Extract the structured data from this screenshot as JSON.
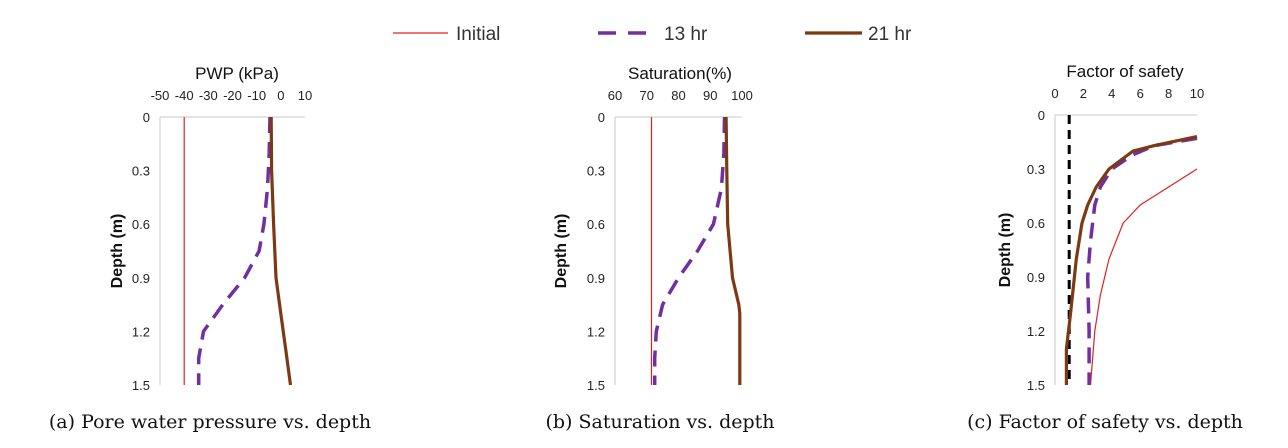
{
  "legend": [
    {
      "name": "Initial",
      "color": "#e02020",
      "style": "solid-thin"
    },
    {
      "name": "13 hr",
      "color": "#7030a0",
      "style": "dashed"
    },
    {
      "name": "21 hr",
      "color": "#7b3a14",
      "style": "solid-thick"
    }
  ],
  "chart_data": [
    {
      "type": "line",
      "title": "PWP (kPa)",
      "caption": "(a) Pore water pressure vs. depth",
      "ylabel": "Depth (m)",
      "xlim": [
        -50,
        10
      ],
      "ylim": [
        0,
        1.5
      ],
      "y_inverted": true,
      "x_axis_position": "top",
      "x_ticks": [
        -50,
        -40,
        -30,
        -20,
        -10,
        0,
        10
      ],
      "x_tick_labels": [
        "-50",
        "-40",
        "-30",
        "-20",
        "-10",
        "0",
        "10"
      ],
      "y_ticks": [
        0,
        0.3,
        0.6,
        0.9,
        1.2,
        1.5
      ],
      "y_tick_labels": [
        "0",
        "0.3",
        "0.6",
        "0.9",
        "1.2",
        "1.5"
      ],
      "series": [
        {
          "name": "Initial",
          "points": [
            [
              -40,
              0
            ],
            [
              -40,
              1.5
            ]
          ]
        },
        {
          "name": "13 hr",
          "points": [
            [
              -4.5,
              0
            ],
            [
              -4.8,
              0.2
            ],
            [
              -5.5,
              0.4
            ],
            [
              -7,
              0.6
            ],
            [
              -9,
              0.75
            ],
            [
              -15,
              0.9
            ],
            [
              -24,
              1.05
            ],
            [
              -32,
              1.2
            ],
            [
              -34,
              1.35
            ],
            [
              -34,
              1.5
            ]
          ]
        },
        {
          "name": "21 hr",
          "points": [
            [
              -4,
              0
            ],
            [
              -3.8,
              0.3
            ],
            [
              -3,
              0.6
            ],
            [
              -2,
              0.9
            ],
            [
              0,
              1.1
            ],
            [
              2,
              1.3
            ],
            [
              4,
              1.5
            ]
          ]
        }
      ]
    },
    {
      "type": "line",
      "title": "Saturation(%)",
      "caption": "(b) Saturation vs. depth",
      "ylabel": "Depth (m)",
      "xlim": [
        60,
        100
      ],
      "ylim": [
        0,
        1.5
      ],
      "y_inverted": true,
      "x_axis_position": "top",
      "x_ticks": [
        60,
        70,
        80,
        90,
        100
      ],
      "x_tick_labels": [
        "60",
        "70",
        "80",
        "90",
        "100"
      ],
      "y_ticks": [
        0,
        0.3,
        0.6,
        0.9,
        1.2,
        1.5
      ],
      "y_tick_labels": [
        "0",
        "0.3",
        "0.6",
        "0.9",
        "1.2",
        "1.5"
      ],
      "series": [
        {
          "name": "Initial",
          "points": [
            [
              71.5,
              0
            ],
            [
              71.5,
              1.5
            ]
          ]
        },
        {
          "name": "13 hr",
          "points": [
            [
              94.5,
              0
            ],
            [
              94.3,
              0.2
            ],
            [
              93.5,
              0.4
            ],
            [
              91,
              0.6
            ],
            [
              86,
              0.75
            ],
            [
              80,
              0.9
            ],
            [
              75,
              1.05
            ],
            [
              73,
              1.2
            ],
            [
              72.5,
              1.35
            ],
            [
              72.5,
              1.5
            ]
          ]
        },
        {
          "name": "21 hr",
          "points": [
            [
              95,
              0
            ],
            [
              95.2,
              0.3
            ],
            [
              95.5,
              0.6
            ],
            [
              97,
              0.9
            ],
            [
              99,
              1.05
            ],
            [
              99.3,
              1.1
            ],
            [
              99.3,
              1.5
            ]
          ]
        }
      ]
    },
    {
      "type": "line",
      "title": "Factor of safety",
      "caption": "(c) Factor of safety vs. depth",
      "ylabel": "Depth (m)",
      "xlim": [
        0,
        10
      ],
      "ylim": [
        0,
        1.5
      ],
      "y_inverted": true,
      "x_axis_position": "top",
      "x_ticks": [
        0,
        2,
        4,
        6,
        8,
        10
      ],
      "x_tick_labels": [
        "0",
        "2",
        "4",
        "6",
        "8",
        "10"
      ],
      "y_ticks": [
        0,
        0.3,
        0.6,
        0.9,
        1.2,
        1.5
      ],
      "y_tick_labels": [
        "0",
        "0.3",
        "0.6",
        "0.9",
        "1.2",
        "1.5"
      ],
      "reference_line": {
        "x": 1,
        "style": "dashed",
        "color": "#000000"
      },
      "series": [
        {
          "name": "Initial",
          "points": [
            [
              10,
              0.3
            ],
            [
              8,
              0.4
            ],
            [
              7,
              0.45
            ],
            [
              6,
              0.5
            ],
            [
              4.8,
              0.6
            ],
            [
              3.8,
              0.8
            ],
            [
              3.2,
              1.0
            ],
            [
              2.8,
              1.2
            ],
            [
              2.5,
              1.5
            ]
          ]
        },
        {
          "name": "13 hr",
          "points": [
            [
              10,
              0.13
            ],
            [
              7,
              0.17
            ],
            [
              5.5,
              0.22
            ],
            [
              4,
              0.3
            ],
            [
              3.2,
              0.4
            ],
            [
              2.8,
              0.5
            ],
            [
              2.5,
              0.7
            ],
            [
              2.3,
              0.9
            ],
            [
              2.4,
              1.2
            ],
            [
              2.4,
              1.5
            ]
          ]
        },
        {
          "name": "21 hr",
          "points": [
            [
              10,
              0.12
            ],
            [
              7,
              0.17
            ],
            [
              5.5,
              0.2
            ],
            [
              3.8,
              0.3
            ],
            [
              2.9,
              0.4
            ],
            [
              2.3,
              0.5
            ],
            [
              1.9,
              0.6
            ],
            [
              1.5,
              0.8
            ],
            [
              1.1,
              1.1
            ],
            [
              0.8,
              1.3
            ],
            [
              0.8,
              1.5
            ]
          ]
        }
      ]
    }
  ]
}
